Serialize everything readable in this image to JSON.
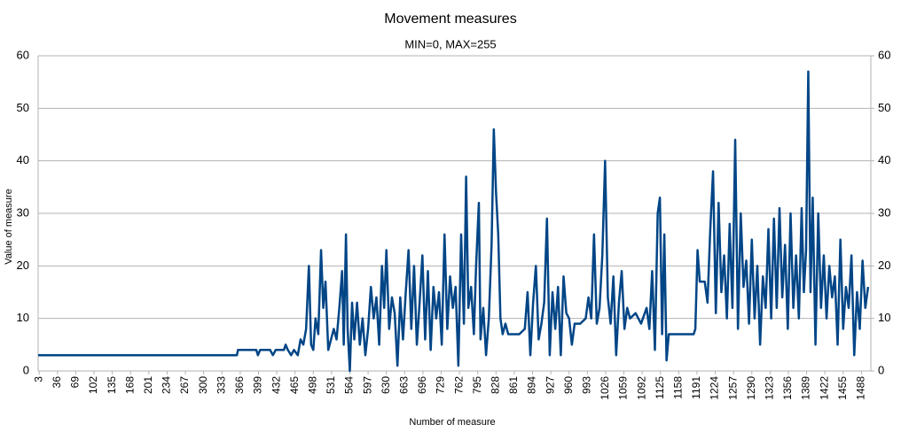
{
  "chart_data": {
    "type": "line",
    "title": "Movement measures",
    "subtitle": "MIN=0, MAX=255",
    "x_label": "Number of measure",
    "y_label": "Value of measure",
    "xlim": [
      1,
      1505
    ],
    "ylim": [
      0,
      60
    ],
    "y2lim": [
      0,
      60
    ],
    "xticks": [
      3,
      36,
      69,
      102,
      135,
      168,
      201,
      234,
      267,
      300,
      333,
      366,
      399,
      432,
      465,
      498,
      531,
      564,
      597,
      630,
      663,
      696,
      729,
      762,
      795,
      828,
      861,
      894,
      927,
      960,
      993,
      1026,
      1059,
      1092,
      1125,
      1158,
      1191,
      1224,
      1257,
      1290,
      1323,
      1356,
      1389,
      1422,
      1455,
      1488
    ],
    "yticks": [
      0,
      10,
      20,
      30,
      40,
      50,
      60
    ],
    "y2ticks": [
      0,
      10,
      20,
      30,
      40,
      50,
      60
    ],
    "grid": true,
    "series": [
      {
        "color": "#004586",
        "x": [
          1,
          360,
          362,
          395,
          398,
          402,
          420,
          425,
          430,
          445,
          448,
          452,
          458,
          463,
          470,
          475,
          480,
          485,
          490,
          494,
          498,
          502,
          507,
          512,
          516,
          520,
          525,
          530,
          535,
          540,
          545,
          550,
          553,
          557,
          560,
          564,
          568,
          572,
          577,
          582,
          587,
          592,
          597,
          602,
          607,
          612,
          617,
          622,
          626,
          630,
          635,
          640,
          645,
          650,
          655,
          660,
          665,
          670,
          675,
          680,
          685,
          690,
          695,
          700,
          705,
          710,
          715,
          720,
          725,
          730,
          735,
          740,
          745,
          750,
          755,
          760,
          765,
          770,
          774,
          778,
          783,
          788,
          792,
          797,
          800,
          805,
          810,
          815,
          820,
          824,
          828,
          832,
          836,
          840,
          845,
          850,
          860,
          870,
          880,
          885,
          890,
          895,
          900,
          905,
          910,
          915,
          920,
          925,
          930,
          935,
          940,
          945,
          950,
          955,
          960,
          965,
          970,
          980,
          990,
          995,
          1000,
          1005,
          1010,
          1015,
          1020,
          1025,
          1030,
          1035,
          1040,
          1045,
          1050,
          1055,
          1060,
          1065,
          1070,
          1080,
          1090,
          1100,
          1105,
          1110,
          1115,
          1120,
          1124,
          1128,
          1132,
          1136,
          1140,
          1150,
          1170,
          1185,
          1188,
          1192,
          1196,
          1200,
          1205,
          1210,
          1215,
          1220,
          1225,
          1230,
          1235,
          1240,
          1245,
          1250,
          1255,
          1260,
          1265,
          1270,
          1275,
          1280,
          1285,
          1290,
          1295,
          1300,
          1305,
          1310,
          1315,
          1320,
          1325,
          1330,
          1335,
          1340,
          1345,
          1350,
          1355,
          1360,
          1365,
          1370,
          1375,
          1380,
          1384,
          1388,
          1392,
          1396,
          1400,
          1405,
          1410,
          1415,
          1420,
          1425,
          1430,
          1435,
          1440,
          1445,
          1450,
          1455,
          1460,
          1465,
          1470,
          1475,
          1480,
          1485,
          1490,
          1495,
          1500
        ],
        "values": [
          3,
          3,
          4,
          4,
          3,
          4,
          4,
          3,
          4,
          4,
          5,
          4,
          3,
          4,
          3,
          6,
          5,
          8,
          20,
          5,
          4,
          10,
          7,
          23,
          12,
          17,
          4,
          6,
          8,
          6,
          12,
          19,
          5,
          26,
          8,
          0,
          13,
          6,
          13,
          5,
          10,
          3,
          8,
          16,
          10,
          14,
          5,
          20,
          12,
          23,
          8,
          14,
          11,
          1,
          14,
          6,
          15,
          23,
          8,
          20,
          5,
          13,
          22,
          6,
          19,
          4,
          16,
          10,
          15,
          5,
          26,
          8,
          18,
          12,
          16,
          1,
          26,
          9,
          37,
          12,
          16,
          7,
          20,
          32,
          6,
          12,
          3,
          10,
          24,
          46,
          34,
          26,
          10,
          7,
          9,
          7,
          7,
          7,
          8,
          15,
          3,
          13,
          20,
          6,
          9,
          13,
          29,
          3,
          15,
          8,
          16,
          3,
          18,
          11,
          10,
          5,
          9,
          9,
          10,
          14,
          10,
          26,
          9,
          12,
          22,
          40,
          14,
          9,
          18,
          3,
          13,
          19,
          8,
          12,
          10,
          11,
          9,
          12,
          8,
          19,
          4,
          30,
          33,
          7,
          26,
          2,
          7,
          7,
          7,
          7,
          8,
          23,
          17,
          17,
          17,
          13,
          27,
          38,
          11,
          32,
          15,
          22,
          10,
          28,
          12,
          44,
          8,
          30,
          16,
          21,
          9,
          25,
          10,
          20,
          5,
          18,
          12,
          27,
          10,
          29,
          12,
          31,
          14,
          24,
          8,
          30,
          12,
          22,
          10,
          31,
          15,
          23,
          57,
          15,
          33,
          5,
          30,
          12,
          22,
          10,
          20,
          14,
          18,
          5,
          25,
          8,
          16,
          12,
          22,
          3,
          15,
          8,
          21,
          12,
          16
        ]
      }
    ]
  }
}
